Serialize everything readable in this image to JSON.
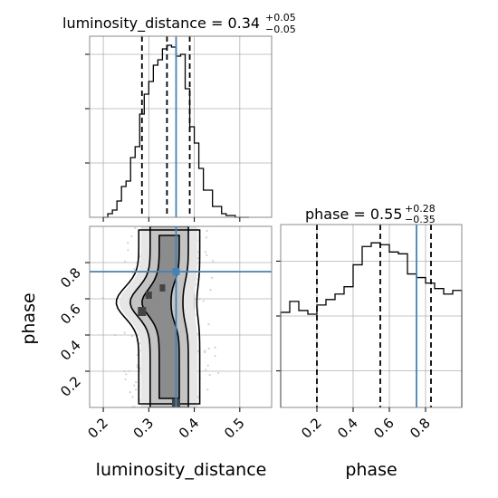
{
  "chart_data": {
    "type": "corner",
    "params": [
      "luminosity_distance",
      "phase"
    ],
    "truth": {
      "luminosity_distance": 0.36,
      "phase": 0.75
    },
    "grid": true,
    "xlabels": [
      "luminosity_distance",
      "phase"
    ],
    "ylabel_2d": "phase",
    "titles": [
      {
        "prefix": "luminosity_distance = ",
        "value": "0.34",
        "plus": "+0.05",
        "minus": "−0.05"
      },
      {
        "prefix": "phase = ",
        "value": "0.55",
        "plus": "+0.28",
        "minus": "−0.35"
      }
    ],
    "panels": [
      {
        "name": "hist-luminosity_distance",
        "type": "step-histogram",
        "param": "luminosity_distance",
        "xlim": [
          0.17,
          0.57
        ],
        "ylim": [
          0,
          1.0
        ],
        "quantiles": [
          0.285,
          0.34,
          0.39
        ],
        "bins_x": [
          0.2,
          0.21,
          0.22,
          0.23,
          0.24,
          0.25,
          0.26,
          0.27,
          0.28,
          0.29,
          0.3,
          0.31,
          0.32,
          0.33,
          0.34,
          0.35,
          0.36,
          0.37,
          0.38,
          0.39,
          0.4,
          0.41,
          0.42,
          0.43,
          0.44,
          0.45,
          0.46,
          0.47,
          0.48,
          0.49,
          0.5,
          0.51,
          0.52
        ],
        "values": [
          0.0,
          0.02,
          0.04,
          0.09,
          0.17,
          0.2,
          0.33,
          0.39,
          0.57,
          0.68,
          0.75,
          0.84,
          0.87,
          0.93,
          0.95,
          0.94,
          0.89,
          0.9,
          0.71,
          0.5,
          0.41,
          0.27,
          0.15,
          0.15,
          0.06,
          0.06,
          0.02,
          0.01,
          0.01,
          0.0,
          0.0,
          0.0
        ],
        "xticks": [
          0.2,
          0.3,
          0.4,
          0.5
        ],
        "xtick_labels": [
          "0.2",
          "0.3",
          "0.4",
          "0.5"
        ],
        "yticks": [
          0.3,
          0.6,
          0.9
        ],
        "yticks_labels": false
      },
      {
        "name": "hist-phase",
        "type": "step-histogram",
        "param": "phase",
        "xlim": [
          0.0,
          1.0
        ],
        "ylim": [
          0,
          1.0
        ],
        "quantiles": [
          0.2,
          0.55,
          0.83
        ],
        "bins_x": [
          0.0,
          0.05,
          0.1,
          0.15,
          0.2,
          0.25,
          0.3,
          0.35,
          0.4,
          0.45,
          0.5,
          0.55,
          0.6,
          0.65,
          0.7,
          0.75,
          0.8,
          0.85,
          0.9,
          0.95,
          1.0
        ],
        "values": [
          0.52,
          0.58,
          0.53,
          0.51,
          0.56,
          0.59,
          0.62,
          0.66,
          0.78,
          0.88,
          0.9,
          0.89,
          0.85,
          0.84,
          0.73,
          0.71,
          0.68,
          0.65,
          0.62,
          0.64
        ],
        "xticks": [
          0.2,
          0.4,
          0.6,
          0.8
        ],
        "xtick_labels": [
          "0.2",
          "0.4",
          "0.6",
          "0.8"
        ],
        "yticks": [
          0.2,
          0.5,
          0.8
        ],
        "yticks_labels": false
      },
      {
        "name": "2d-luminosity_distance-phase",
        "type": "2d-density",
        "xlim": [
          0.17,
          0.57
        ],
        "ylim": [
          0.0,
          1.0
        ],
        "xticks": [
          0.2,
          0.3,
          0.4,
          0.5
        ],
        "xtick_labels": [
          "0.2",
          "0.3",
          "0.4",
          "0.5"
        ],
        "yticks": [
          0.2,
          0.4,
          0.6,
          0.8
        ],
        "ytick_labels": [
          "0.2",
          "0.4",
          "0.6",
          "0.8"
        ]
      }
    ],
    "colors": {
      "truth": "#4682b4",
      "line": "#000000",
      "grid": "#b0b0b0",
      "scatter": "#bfbfbf",
      "density": "#444444"
    }
  }
}
